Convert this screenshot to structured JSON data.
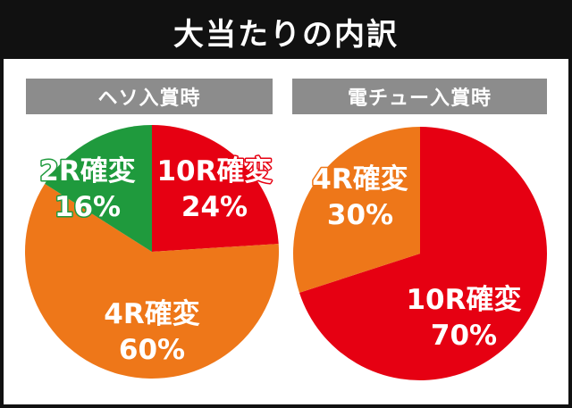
{
  "title": "大当たりの内訳",
  "colors": {
    "red": "#e60012",
    "orange": "#ee7719",
    "green": "#1f9a3d",
    "header_bg": "#8c8c8c",
    "title_bg": "#111111"
  },
  "chart_data": [
    {
      "type": "pie",
      "title": "ヘソ入賞時",
      "slices": [
        {
          "name": "10R確変",
          "value": 24,
          "label_name": "10R確変",
          "label_value": "24%",
          "color": "#e60012"
        },
        {
          "name": "4R確変",
          "value": 60,
          "label_name": "4R確変",
          "label_value": "60%",
          "color": "#ee7719"
        },
        {
          "name": "2R確変",
          "value": 16,
          "label_name": "2R確変",
          "label_value": "16%",
          "color": "#1f9a3d"
        }
      ]
    },
    {
      "type": "pie",
      "title": "電チュー入賞時",
      "slices": [
        {
          "name": "10R確変",
          "value": 70,
          "label_name": "10R確変",
          "label_value": "70%",
          "color": "#e60012"
        },
        {
          "name": "4R確変",
          "value": 30,
          "label_name": "4R確変",
          "label_value": "30%",
          "color": "#ee7719"
        }
      ]
    }
  ]
}
